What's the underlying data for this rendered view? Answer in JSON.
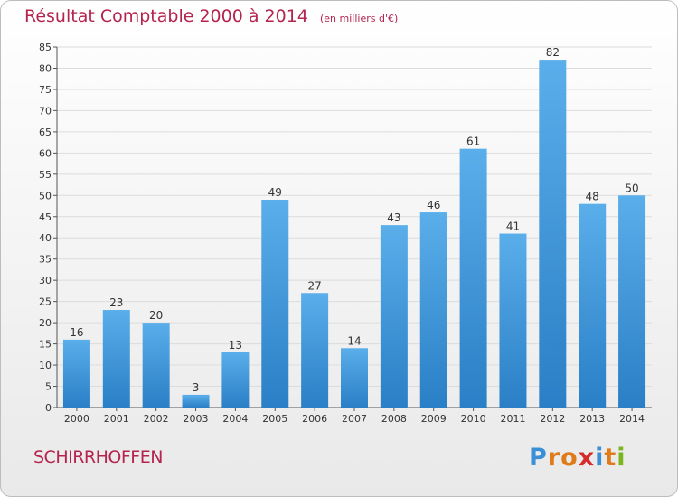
{
  "title": "Résultat Comptable 2000 à 2014",
  "unit": "(en milliers d'€)",
  "commune": "SCHIRRHOFFEN",
  "logo": {
    "text": "Proxiti",
    "letter_colors": [
      "#3b8fd6",
      "#e07b1a",
      "#e07b1a",
      "#d62b2b",
      "#3b8fd6",
      "#e07b1a",
      "#7ab51d"
    ]
  },
  "colors": {
    "title": "#b5234f",
    "bar_light": "#5aaeea",
    "bar_dark": "#2a7fc6",
    "grid": "#dcdcdc",
    "axis_text": "#333333"
  },
  "chart_data": {
    "type": "bar",
    "categories": [
      "2000",
      "2001",
      "2002",
      "2003",
      "2004",
      "2005",
      "2006",
      "2007",
      "2008",
      "2009",
      "2010",
      "2011",
      "2012",
      "2013",
      "2014"
    ],
    "values": [
      16,
      23,
      20,
      3,
      13,
      49,
      27,
      14,
      43,
      46,
      61,
      41,
      82,
      48,
      50
    ],
    "ylim": [
      0,
      85
    ],
    "yticks": [
      0,
      5,
      10,
      15,
      20,
      25,
      30,
      35,
      40,
      45,
      50,
      55,
      60,
      65,
      70,
      75,
      80,
      85
    ],
    "grid": true
  }
}
